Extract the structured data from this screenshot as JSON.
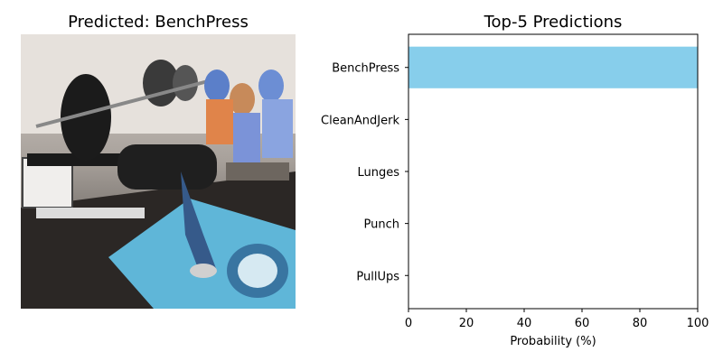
{
  "image_panel": {
    "title": "Predicted: BenchPress"
  },
  "chart_data": {
    "type": "bar",
    "orientation": "horizontal",
    "title": "Top-5 Predictions",
    "categories": [
      "BenchPress",
      "CleanAndJerk",
      "Lunges",
      "Punch",
      "PullUps"
    ],
    "values": [
      100,
      0,
      0,
      0,
      0
    ],
    "xlabel": "Probability (%)",
    "ylabel": "",
    "xlim": [
      0,
      100
    ],
    "xticks": [
      0,
      20,
      40,
      60,
      80,
      100
    ],
    "bar_color": "#87ceeb",
    "grid": false,
    "legend": false
  },
  "colors": {
    "bar": "#87ceeb",
    "axis": "#000000",
    "background": "#ffffff"
  }
}
